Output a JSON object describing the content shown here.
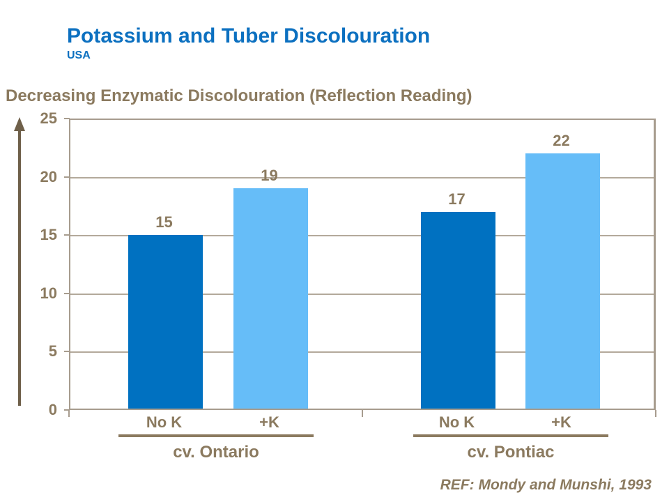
{
  "header": {
    "title": "Potassium and Tuber Discolouration",
    "subtitle": "USA"
  },
  "footer": {
    "ref": "REF: Mondy and Munshi, 1993"
  },
  "colors": {
    "title_blue": "#0C70C0",
    "dark_bar": "#0071C1",
    "light_bar": "#66BDF8",
    "text_brown": "#8B7A5F",
    "arrow_brown": "#6F604A",
    "axis_line": "#A79C8E",
    "gridline": "#B3A99B"
  },
  "chart_data": {
    "type": "bar",
    "title": "Decreasing Enzymatic Discolouration (Reflection Reading)",
    "xlabel": "",
    "ylabel": "Decreasing Enzymatic Discolouration (Reflection Reading)",
    "ylim": [
      0,
      25
    ],
    "yticks": [
      0,
      5,
      10,
      15,
      20,
      25
    ],
    "grid": true,
    "legend_position": "none",
    "categories": [
      "No K",
      "+K",
      "No K",
      "+K"
    ],
    "values": [
      15,
      19,
      17,
      22
    ],
    "groups": [
      {
        "label": "cv. Ontario",
        "bars": [
          {
            "label": "No K",
            "value": 15,
            "color_key": "dark_bar"
          },
          {
            "label": "+K",
            "value": 19,
            "color_key": "light_bar"
          }
        ]
      },
      {
        "label": "cv. Pontiac",
        "bars": [
          {
            "label": "No K",
            "value": 17,
            "color_key": "dark_bar"
          },
          {
            "label": "+K",
            "value": 22,
            "color_key": "light_bar"
          }
        ]
      }
    ]
  }
}
